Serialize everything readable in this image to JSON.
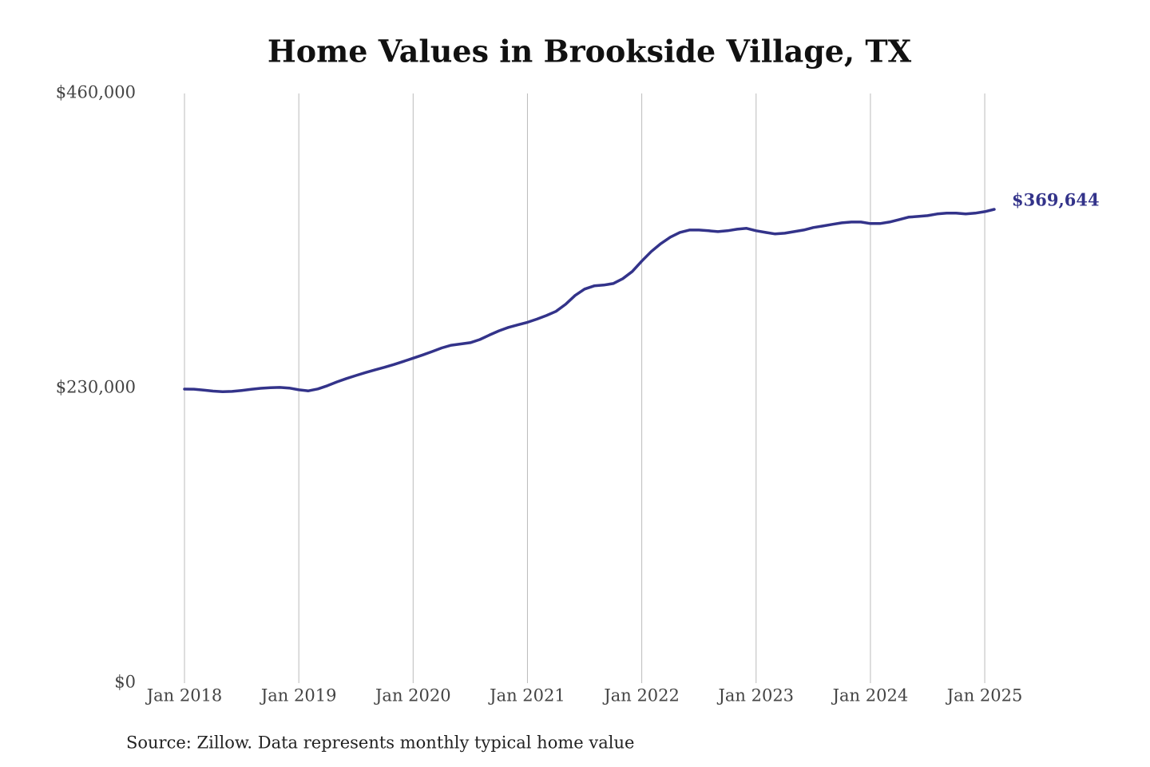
{
  "chart_data": {
    "type": "line",
    "title": "Home Values in Brookside Village, TX",
    "source": "Source: Zillow. Data represents monthly typical home value",
    "color": "#33338a",
    "x": [
      "2018-01",
      "2018-02",
      "2018-03",
      "2018-04",
      "2018-05",
      "2018-06",
      "2018-07",
      "2018-08",
      "2018-09",
      "2018-10",
      "2018-11",
      "2018-12",
      "2019-01",
      "2019-02",
      "2019-03",
      "2019-04",
      "2019-05",
      "2019-06",
      "2019-07",
      "2019-08",
      "2019-09",
      "2019-10",
      "2019-11",
      "2019-12",
      "2020-01",
      "2020-02",
      "2020-03",
      "2020-04",
      "2020-05",
      "2020-06",
      "2020-07",
      "2020-08",
      "2020-09",
      "2020-10",
      "2020-11",
      "2020-12",
      "2021-01",
      "2021-02",
      "2021-03",
      "2021-04",
      "2021-05",
      "2021-06",
      "2021-07",
      "2021-08",
      "2021-09",
      "2021-10",
      "2021-11",
      "2021-12",
      "2022-01",
      "2022-02",
      "2022-03",
      "2022-04",
      "2022-05",
      "2022-06",
      "2022-07",
      "2022-08",
      "2022-09",
      "2022-10",
      "2022-11",
      "2022-12",
      "2023-01",
      "2023-02",
      "2023-03",
      "2023-04",
      "2023-05",
      "2023-06",
      "2023-07",
      "2023-08",
      "2023-09",
      "2023-10",
      "2023-11",
      "2023-12",
      "2024-01",
      "2024-02",
      "2024-03",
      "2024-04",
      "2024-05",
      "2024-06",
      "2024-07",
      "2024-08",
      "2024-09",
      "2024-10",
      "2024-11",
      "2024-12",
      "2025-01",
      "2025-02"
    ],
    "values": [
      229400,
      229300,
      228600,
      227800,
      227400,
      227600,
      228300,
      229200,
      230000,
      230500,
      230700,
      230200,
      228800,
      228000,
      229500,
      232000,
      235000,
      237600,
      240000,
      242300,
      244400,
      246400,
      248600,
      251000,
      253500,
      256000,
      258700,
      261500,
      263600,
      264600,
      265600,
      268000,
      271500,
      274800,
      277500,
      279500,
      281500,
      284000,
      286800,
      290000,
      295500,
      302400,
      307400,
      309900,
      310500,
      311700,
      315500,
      321100,
      329200,
      336700,
      342900,
      347900,
      351600,
      353500,
      353500,
      352900,
      352200,
      352900,
      354100,
      354800,
      352900,
      351600,
      350400,
      351000,
      352200,
      353500,
      355400,
      356600,
      357900,
      359100,
      359700,
      359700,
      358500,
      358500,
      359700,
      361600,
      363500,
      364100,
      364700,
      366000,
      366600,
      366600,
      366000,
      366600,
      367800,
      369644
    ],
    "value_labels": [
      null,
      null,
      null,
      null,
      null,
      null,
      null,
      null,
      null,
      null,
      null,
      null,
      null,
      null,
      null,
      null,
      null,
      null,
      null,
      null,
      null,
      null,
      null,
      null,
      null,
      null,
      null,
      null,
      null,
      null,
      null,
      null,
      null,
      null,
      null,
      null,
      null,
      null,
      null,
      null,
      null,
      null,
      null,
      null,
      null,
      null,
      null,
      null,
      null,
      null,
      null,
      null,
      null,
      null,
      null,
      null,
      null,
      null,
      null,
      null,
      null,
      null,
      null,
      null,
      null,
      null,
      null,
      null,
      null,
      null,
      null,
      null,
      null,
      null,
      null,
      null,
      null,
      null,
      null,
      null,
      null,
      null,
      null,
      null,
      null,
      "$369,644"
    ],
    "xlim": [
      "2018-01",
      "2025-02"
    ],
    "xticks": [
      {
        "value": "2018-01",
        "label": "Jan 2018"
      },
      {
        "value": "2019-01",
        "label": "Jan 2019"
      },
      {
        "value": "2020-01",
        "label": "Jan 2020"
      },
      {
        "value": "2021-01",
        "label": "Jan 2021"
      },
      {
        "value": "2022-01",
        "label": "Jan 2022"
      },
      {
        "value": "2023-01",
        "label": "Jan 2023"
      },
      {
        "value": "2024-01",
        "label": "Jan 2024"
      },
      {
        "value": "2025-01",
        "label": "Jan 2025"
      }
    ],
    "ylim": [
      0,
      460000
    ],
    "yticks": [
      {
        "value": 0,
        "label": "$0"
      },
      {
        "value": 230000,
        "label": "$230,000"
      },
      {
        "value": 460000,
        "label": "$460,000"
      }
    ],
    "grid": "x"
  }
}
